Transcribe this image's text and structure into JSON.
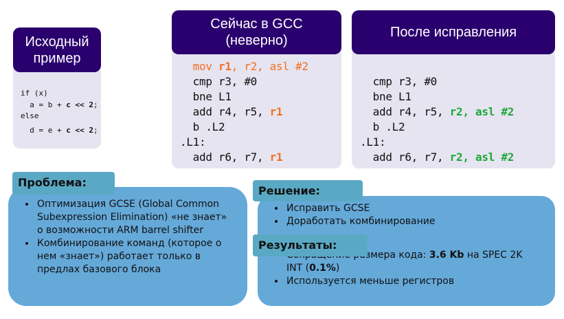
{
  "cards": [
    {
      "title": "Исходный пример",
      "code": [
        "if (x)",
        "  a = b + ",
        "c << 2",
        ";",
        "else",
        "  d = e + ",
        "c << 2",
        ";"
      ]
    },
    {
      "title": "Сейчас в GCC (неверно)",
      "lines": [
        [
          "mov ",
          "r1",
          ", r2, asl #2"
        ],
        [
          "cmp r3, #0"
        ],
        [
          "bne L1"
        ],
        [
          "add r4, r5, ",
          "r1"
        ],
        [
          "b .L2"
        ],
        [
          ".L1:"
        ],
        [
          "add r6, r7, ",
          "r1"
        ]
      ]
    },
    {
      "title": "После исправления",
      "lines": [
        [
          "cmp r3, #0"
        ],
        [
          "bne L1"
        ],
        [
          "add r4, r5, ",
          "r2, asl #2"
        ],
        [
          "b .L2"
        ],
        [
          ".L1:"
        ],
        [
          "add r6, r7, ",
          "r2, asl #2"
        ]
      ]
    }
  ],
  "problem": {
    "title": "Проблема:",
    "items": [
      "Оптимизация GCSE (Global Common Subexpression Elimination) «не знает» о возможности ARM barrel shifter",
      "Комбинирование команд (которое о нем «знает») работает только в предлах базового блока"
    ]
  },
  "solution": {
    "title": "Решение:",
    "items": [
      "Исправить GCSE",
      "Доработать комбинирование"
    ]
  },
  "results": {
    "title": "Результаты:",
    "item1": {
      "a": "Сокращение размера кода: ",
      "b": "3.6 Kb",
      "c": " на SPEC 2K INT (",
      "d": "0.1%",
      "e": ")"
    },
    "item2": "Используется меньше регистров"
  },
  "colors": {
    "header": "#2a006e",
    "card": "#e6e4f0",
    "box": "#65a9d9",
    "tab": "#5aa9c4",
    "wrong": "#f07020",
    "fixed": "#1fa83a"
  }
}
